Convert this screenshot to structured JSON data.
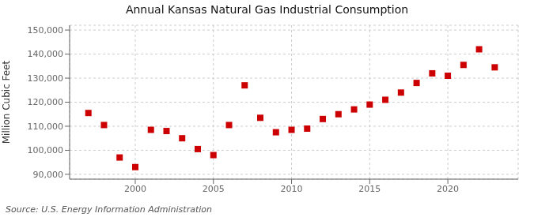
{
  "chart_data": {
    "type": "scatter",
    "title": "Annual Kansas Natural Gas Industrial Consumption",
    "ylabel": "Million Cubic Feet",
    "annotations": [
      "Source: U.S. Energy Information Administration"
    ],
    "x": [
      1997,
      1998,
      1999,
      2000,
      2001,
      2002,
      2003,
      2004,
      2005,
      2006,
      2007,
      2008,
      2009,
      2010,
      2011,
      2012,
      2013,
      2014,
      2015,
      2016,
      2017,
      2018,
      2019,
      2020,
      2021,
      2022,
      2023
    ],
    "values": [
      115500,
      110500,
      97000,
      93000,
      108500,
      108000,
      105000,
      100500,
      98000,
      110500,
      127000,
      113500,
      107500,
      108500,
      109000,
      113000,
      115000,
      117000,
      119000,
      121000,
      124000,
      128000,
      132000,
      131000,
      135500,
      142000,
      134500
    ],
    "color": "#cc0000",
    "marker": "square",
    "xlim": [
      1995.8,
      2024.5
    ],
    "xticks": [
      2000,
      2005,
      2010,
      2015,
      2020
    ],
    "ylim": [
      88000,
      152000
    ],
    "yticks": [
      {
        "value": 90000,
        "label": "90,000"
      },
      {
        "value": 100000,
        "label": "100,000"
      },
      {
        "value": 110000,
        "label": "110,000"
      },
      {
        "value": 120000,
        "label": "120,000"
      },
      {
        "value": 130000,
        "label": "130,000"
      },
      {
        "value": 140000,
        "label": "140,000"
      },
      {
        "value": 150000,
        "label": "150,000"
      }
    ],
    "grid": true
  }
}
